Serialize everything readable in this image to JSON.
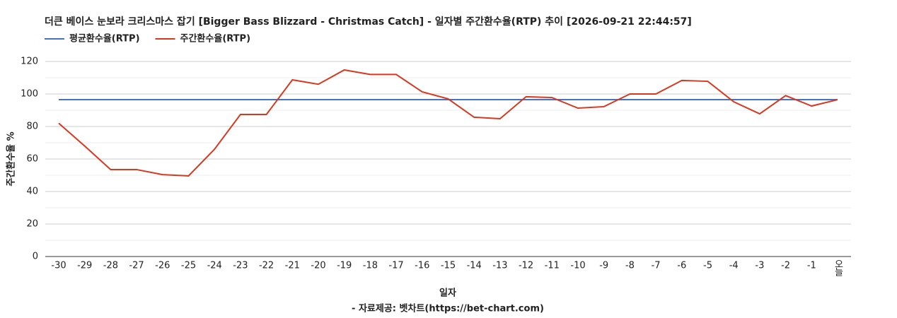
{
  "chart_data": {
    "type": "line",
    "title": "더큰 베이스 눈보라 크리스마스 잡기 [Bigger Bass Blizzard - Christmas Catch] - 일자별 주간환수율(RTP) 추이 [2026-09-21 22:44:57]",
    "x_label": "일자",
    "y_label": "주간환수율 %",
    "subtitle": "- 자료제공: 벳차트(https://bet-chart.com)",
    "categories": [
      "-30",
      "-29",
      "-28",
      "-27",
      "-26",
      "-25",
      "-24",
      "-23",
      "-22",
      "-21",
      "-20",
      "-19",
      "-18",
      "-17",
      "-16",
      "-15",
      "-14",
      "-13",
      "-12",
      "-11",
      "-10",
      "-9",
      "-8",
      "-7",
      "-6",
      "-5",
      "-4",
      "-3",
      "-2",
      "-1",
      "오늘"
    ],
    "series": [
      {
        "name": "평균환수율(RTP)",
        "color": "#4472c4",
        "values": [
          96.5,
          96.5,
          96.5,
          96.5,
          96.5,
          96.5,
          96.5,
          96.5,
          96.5,
          96.5,
          96.5,
          96.5,
          96.5,
          96.5,
          96.5,
          96.5,
          96.5,
          96.5,
          96.5,
          96.5,
          96.5,
          96.5,
          96.5,
          96.5,
          96.5,
          96.5,
          96.5,
          96.5,
          96.5,
          96.5,
          96.5
        ]
      },
      {
        "name": "주간환수율(RTP)",
        "color": "#d9381e",
        "values": [
          82,
          68,
          53.5,
          53.5,
          50.4,
          49.6,
          66,
          87.4,
          87.4,
          108.7,
          106,
          114.8,
          112,
          112,
          101.3,
          97,
          85.7,
          84.8,
          98.3,
          97.8,
          91.3,
          92.2,
          100,
          100,
          108.3,
          107.8,
          95.2,
          87.8,
          99,
          92.6,
          96.5
        ]
      }
    ],
    "ylim": [
      0,
      120
    ],
    "yticks": [
      0,
      20,
      40,
      60,
      80,
      100,
      120
    ],
    "minor_yticks": [
      10,
      30,
      50,
      70,
      90,
      110
    ],
    "grid": true,
    "legend": "top-left"
  }
}
